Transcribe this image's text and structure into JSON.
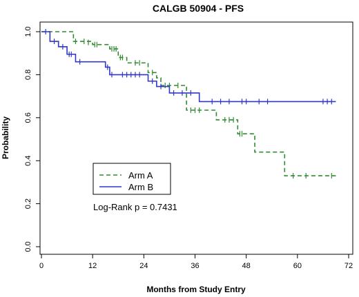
{
  "chart_data": {
    "type": "line",
    "subtype": "kaplan-meier-step",
    "title": "CALGB 50904 - PFS",
    "xlabel": "Months from Study Entry",
    "ylabel": "Probability",
    "xlim": [
      0,
      72
    ],
    "ylim": [
      0,
      1
    ],
    "xticks": [
      0,
      12,
      24,
      36,
      48,
      60,
      72
    ],
    "yticks": [
      0.0,
      0.2,
      0.4,
      0.6,
      0.8,
      1.0
    ],
    "xtick_labels": [
      "0",
      "12",
      "24",
      "36",
      "48",
      "60",
      "72"
    ],
    "ytick_labels": [
      "0.0",
      "0.2",
      "0.4",
      "0.6",
      "0.8",
      "1.0"
    ],
    "grid": false,
    "legend_position": "lower-left",
    "annotation": "Log-Rank p = 0.7431",
    "series": [
      {
        "name": "Arm A",
        "color": "#2e8b2e",
        "style": "dashed",
        "steps": [
          [
            0,
            1.0
          ],
          [
            7.5,
            0.955
          ],
          [
            12,
            0.94
          ],
          [
            16,
            0.92
          ],
          [
            18,
            0.88
          ],
          [
            20,
            0.855
          ],
          [
            25,
            0.81
          ],
          [
            27,
            0.785
          ],
          [
            28,
            0.75
          ],
          [
            34,
            0.635
          ],
          [
            41,
            0.59
          ],
          [
            46,
            0.525
          ],
          [
            50,
            0.44
          ],
          [
            57,
            0.33
          ],
          [
            69,
            0.33
          ]
        ],
        "censored": [
          [
            8,
            0.955
          ],
          [
            10,
            0.955
          ],
          [
            11,
            0.95
          ],
          [
            12.5,
            0.94
          ],
          [
            13,
            0.94
          ],
          [
            16.5,
            0.92
          ],
          [
            17,
            0.92
          ],
          [
            17.5,
            0.92
          ],
          [
            18.5,
            0.88
          ],
          [
            19,
            0.88
          ],
          [
            22,
            0.855
          ],
          [
            23,
            0.855
          ],
          [
            26,
            0.81
          ],
          [
            29,
            0.75
          ],
          [
            30,
            0.75
          ],
          [
            32,
            0.75
          ],
          [
            35,
            0.635
          ],
          [
            36,
            0.635
          ],
          [
            37,
            0.635
          ],
          [
            43,
            0.59
          ],
          [
            44,
            0.59
          ],
          [
            45,
            0.59
          ],
          [
            46.5,
            0.525
          ],
          [
            47,
            0.525
          ],
          [
            59,
            0.33
          ],
          [
            62,
            0.33
          ],
          [
            68,
            0.33
          ]
        ]
      },
      {
        "name": "Arm B",
        "color": "#2f36c9",
        "style": "solid",
        "steps": [
          [
            0,
            1.0
          ],
          [
            2,
            0.955
          ],
          [
            4,
            0.93
          ],
          [
            6,
            0.895
          ],
          [
            8,
            0.86
          ],
          [
            15,
            0.835
          ],
          [
            16,
            0.8
          ],
          [
            25,
            0.77
          ],
          [
            27,
            0.745
          ],
          [
            30,
            0.715
          ],
          [
            37,
            0.675
          ],
          [
            69,
            0.675
          ]
        ],
        "censored": [
          [
            1,
            1.0
          ],
          [
            3,
            0.955
          ],
          [
            5,
            0.93
          ],
          [
            6.5,
            0.895
          ],
          [
            7,
            0.895
          ],
          [
            9,
            0.86
          ],
          [
            15.5,
            0.835
          ],
          [
            16.5,
            0.8
          ],
          [
            19,
            0.8
          ],
          [
            20,
            0.8
          ],
          [
            21,
            0.8
          ],
          [
            22,
            0.8
          ],
          [
            23,
            0.8
          ],
          [
            26,
            0.77
          ],
          [
            28,
            0.745
          ],
          [
            31,
            0.715
          ],
          [
            33,
            0.715
          ],
          [
            35,
            0.715
          ],
          [
            40,
            0.675
          ],
          [
            42,
            0.675
          ],
          [
            44,
            0.675
          ],
          [
            47,
            0.675
          ],
          [
            48,
            0.675
          ],
          [
            51,
            0.675
          ],
          [
            53,
            0.675
          ],
          [
            66,
            0.675
          ],
          [
            67,
            0.675
          ],
          [
            68,
            0.675
          ]
        ]
      }
    ]
  }
}
